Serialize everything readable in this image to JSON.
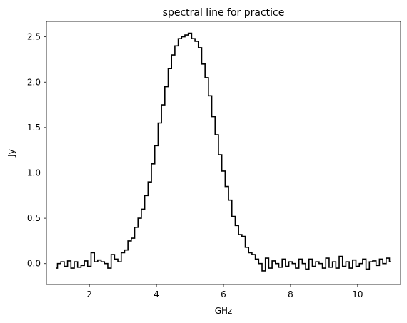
{
  "chart_data": {
    "type": "line",
    "style": "step",
    "title": "spectral line for practice",
    "xlabel": "GHz",
    "ylabel": "Jy",
    "xlim": [
      0.72,
      11.28
    ],
    "ylim": [
      -0.23,
      2.67
    ],
    "xticks": [
      2,
      4,
      6,
      8,
      10
    ],
    "xtick_labels": [
      "2",
      "4",
      "6",
      "8",
      "10"
    ],
    "yticks": [
      0.0,
      0.5,
      1.0,
      1.5,
      2.0,
      2.5
    ],
    "ytick_labels": [
      "0.0",
      "0.5",
      "1.0",
      "1.5",
      "2.0",
      "2.5"
    ],
    "grid": false,
    "line_color": "#000000",
    "series": [
      {
        "x": [
          1.0,
          1.1,
          1.2,
          1.3,
          1.4,
          1.5,
          1.6,
          1.7,
          1.8,
          1.9,
          2.0,
          2.1,
          2.2,
          2.3,
          2.4,
          2.5,
          2.6,
          2.7,
          2.8,
          2.9,
          3.0,
          3.1,
          3.2,
          3.3,
          3.4,
          3.5,
          3.6,
          3.7,
          3.8,
          3.9,
          4.0,
          4.1,
          4.2,
          4.3,
          4.4,
          4.5,
          4.6,
          4.7,
          4.8,
          4.9,
          5.0,
          5.1,
          5.2,
          5.3,
          5.4,
          5.5,
          5.6,
          5.7,
          5.8,
          5.9,
          6.0,
          6.1,
          6.2,
          6.3,
          6.4,
          6.5,
          6.6,
          6.7,
          6.8,
          6.9,
          7.0,
          7.1,
          7.2,
          7.3,
          7.4,
          7.5,
          7.6,
          7.7,
          7.8,
          7.9,
          8.0,
          8.1,
          8.2,
          8.3,
          8.4,
          8.5,
          8.6,
          8.7,
          8.8,
          8.9,
          9.0,
          9.1,
          9.2,
          9.3,
          9.4,
          9.5,
          9.6,
          9.7,
          9.8,
          9.9,
          10.0,
          10.1,
          10.2,
          10.3,
          10.4,
          10.5,
          10.6,
          10.7,
          10.8,
          10.9,
          11.0
        ],
        "y": [
          -0.05,
          0.0,
          0.02,
          -0.03,
          0.03,
          -0.05,
          0.02,
          -0.04,
          -0.02,
          0.03,
          -0.03,
          0.12,
          0.02,
          0.04,
          0.02,
          0.0,
          -0.05,
          0.1,
          0.05,
          0.02,
          0.12,
          0.15,
          0.25,
          0.28,
          0.4,
          0.5,
          0.6,
          0.75,
          0.9,
          1.1,
          1.3,
          1.55,
          1.75,
          1.95,
          2.15,
          2.3,
          2.4,
          2.48,
          2.5,
          2.52,
          2.54,
          2.48,
          2.45,
          2.38,
          2.2,
          2.05,
          1.85,
          1.62,
          1.42,
          1.2,
          1.02,
          0.85,
          0.7,
          0.52,
          0.42,
          0.32,
          0.3,
          0.18,
          0.12,
          0.1,
          0.05,
          0.0,
          -0.08,
          0.06,
          -0.05,
          0.03,
          0.0,
          -0.04,
          0.05,
          -0.03,
          0.02,
          0.0,
          -0.05,
          0.05,
          0.0,
          -0.06,
          0.05,
          -0.03,
          0.02,
          0.0,
          -0.05,
          0.06,
          -0.04,
          0.02,
          -0.05,
          0.08,
          -0.03,
          0.02,
          -0.05,
          0.04,
          -0.03,
          0.0,
          0.05,
          -0.06,
          0.02,
          0.03,
          -0.02,
          0.05,
          0.0,
          0.06,
          0.02
        ]
      }
    ]
  }
}
